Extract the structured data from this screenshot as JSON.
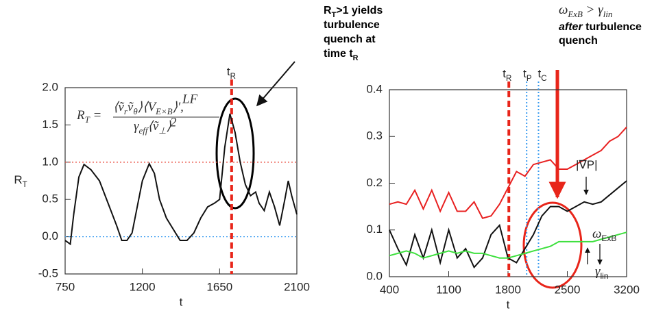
{
  "chart_data": [
    {
      "type": "line",
      "x": [
        750,
        780,
        800,
        830,
        860,
        900,
        950,
        1000,
        1050,
        1080,
        1110,
        1140,
        1170,
        1200,
        1240,
        1270,
        1300,
        1340,
        1380,
        1420,
        1460,
        1500,
        1540,
        1580,
        1620,
        1650,
        1680,
        1710,
        1740,
        1770,
        1800,
        1830,
        1860,
        1880,
        1910,
        1940,
        1970,
        2000,
        2030,
        2050,
        2070,
        2100
      ],
      "series": [
        {
          "name": "R_T",
          "color": "#111111",
          "values": [
            -0.05,
            -0.1,
            0.3,
            0.8,
            0.97,
            0.9,
            0.75,
            0.45,
            0.15,
            -0.05,
            -0.05,
            0.05,
            0.4,
            0.75,
            0.98,
            0.85,
            0.5,
            0.25,
            0.1,
            -0.05,
            -0.05,
            0.05,
            0.25,
            0.4,
            0.45,
            0.5,
            1.2,
            1.65,
            1.4,
            1.0,
            0.7,
            0.55,
            0.6,
            0.45,
            0.35,
            0.6,
            0.4,
            0.15,
            0.5,
            0.75,
            0.55,
            0.3
          ]
        }
      ],
      "xlim": [
        750,
        2100
      ],
      "xticks": [
        750,
        1200,
        1650,
        2100
      ],
      "ylim": [
        -0.5,
        2.0
      ],
      "yticks": [
        -0.5,
        {
          "value": 0,
          "label": "0.0"
        },
        0.5,
        {
          "value": 1,
          "label": "1.0"
        },
        1.5,
        {
          "value": 2,
          "label": "2.0"
        }
      ],
      "x_label": "t",
      "y_label": [
        "R",
        "T"
      ],
      "hlines": [
        {
          "y": 1,
          "color": "#e8473a",
          "style": "dotted"
        },
        {
          "y": 0,
          "color": "#3a9cf0",
          "style": "dotted"
        }
      ],
      "vlines": [
        {
          "x": 1720,
          "label": [
            "t",
            "R"
          ],
          "color": "#e8251a",
          "style": "dashed"
        }
      ],
      "formula": {
        "lhs": [
          "R",
          "T",
          " ="
        ],
        "numerator": [
          "⟨ṽ",
          "r",
          "ṽ",
          "θ",
          "⟩⟨V",
          "E×B",
          "⟩′,"
        ],
        "numerator_sup": "LF",
        "denominator": [
          "γ",
          "eff",
          "⟨ṽ",
          "⊥",
          "⟩"
        ],
        "denominator_sup": "2"
      }
    },
    {
      "type": "line",
      "x": [
        400,
        500,
        600,
        700,
        800,
        900,
        1000,
        1100,
        1200,
        1300,
        1400,
        1500,
        1600,
        1700,
        1800,
        1900,
        2000,
        2100,
        2200,
        2300,
        2400,
        2500,
        2600,
        2700,
        2800,
        2900,
        3000,
        3100,
        3200
      ],
      "series": [
        {
          "name": "|∇P|",
          "color": "#e82020",
          "values": [
            0.155,
            0.16,
            0.155,
            0.185,
            0.145,
            0.185,
            0.14,
            0.18,
            0.14,
            0.14,
            0.16,
            0.125,
            0.13,
            0.155,
            0.19,
            0.225,
            0.215,
            0.24,
            0.245,
            0.25,
            0.23,
            0.23,
            0.24,
            0.25,
            0.26,
            0.27,
            0.29,
            0.3,
            0.32
          ]
        },
        {
          "name": "ω",
          "subscript": "ExB",
          "color": "#111111",
          "values": [
            0.1,
            0.06,
            0.025,
            0.09,
            0.04,
            0.1,
            0.03,
            0.1,
            0.04,
            0.06,
            0.02,
            0.04,
            0.09,
            0.11,
            0.04,
            0.03,
            0.06,
            0.09,
            0.13,
            0.15,
            0.15,
            0.14,
            0.15,
            0.16,
            0.155,
            0.16,
            0.175,
            0.19,
            0.205
          ]
        },
        {
          "name": "γ",
          "subscript": "lin",
          "color": "#3ee03e",
          "values": [
            0.045,
            0.05,
            0.055,
            0.05,
            0.04,
            0.045,
            0.05,
            0.055,
            0.05,
            0.055,
            0.05,
            0.05,
            0.045,
            0.04,
            0.04,
            0.045,
            0.05,
            0.055,
            0.06,
            0.065,
            0.075,
            0.075,
            0.075,
            0.075,
            0.075,
            0.08,
            0.085,
            0.09,
            0.095
          ]
        }
      ],
      "xlim": [
        400,
        3200
      ],
      "xticks": [
        400,
        1100,
        1800,
        2500,
        3200
      ],
      "ylim": [
        0,
        0.4
      ],
      "yticks": [
        {
          "value": 0,
          "label": "0.0"
        },
        0.1,
        0.2,
        0.3,
        0.4
      ],
      "x_label": "t",
      "hlines": [],
      "vlines": [
        {
          "x": 1810,
          "label": [
            "t",
            "R"
          ],
          "color": "#e8251a",
          "style": "dashed"
        },
        {
          "x": 2020,
          "label": [
            "t",
            "P"
          ],
          "color": "#3a9cf0",
          "style": "dotted"
        },
        {
          "x": 2160,
          "label": [
            "t",
            "C"
          ],
          "color": "#3a9cf0",
          "style": "dotted"
        }
      ]
    }
  ],
  "annotations": {
    "left": [
      [
        "R",
        "T",
        ">1 yields"
      ],
      [
        "turbulence"
      ],
      [
        "quench at"
      ],
      [
        "time t",
        "R"
      ]
    ],
    "right": {
      "condition": [
        "ω",
        "ExB",
        " > γ",
        "lin"
      ],
      "line2": [
        "after",
        " turbulence"
      ],
      "line3": "quench"
    }
  }
}
